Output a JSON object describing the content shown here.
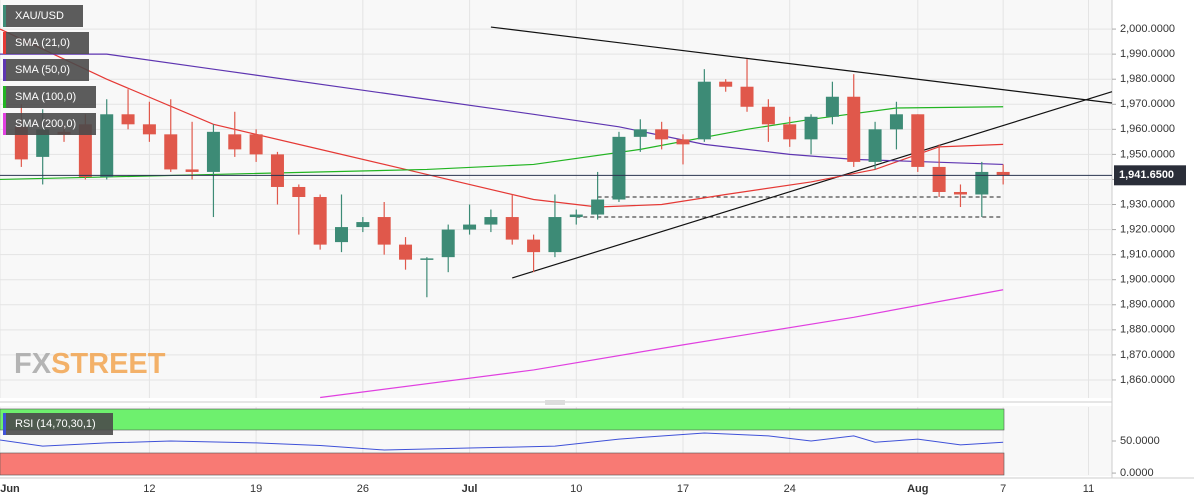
{
  "chart_data": {
    "type": "candlestick",
    "x": [
      1,
      2,
      3,
      4,
      5,
      6,
      7,
      8,
      9,
      10,
      11,
      12,
      13,
      14,
      15,
      16,
      17,
      18,
      19,
      20,
      21,
      22,
      23,
      24,
      25,
      26,
      27,
      28,
      29,
      30,
      31,
      32,
      33,
      34,
      35,
      36,
      37,
      38,
      39,
      40,
      41,
      42,
      43,
      44,
      45,
      46,
      47
    ],
    "candles": {
      "name": "XAU/USD",
      "up_color": "#3d8b76",
      "down_color": "#e0584b",
      "open": [
        1961,
        1949,
        1959,
        1962,
        1941,
        1966,
        1962,
        1958,
        1944,
        1943,
        1958,
        1958,
        1950,
        1937,
        1933,
        1915,
        1921,
        1925,
        1914,
        1908,
        1909,
        1920,
        1922,
        1925,
        1916,
        1911,
        1925,
        1926,
        1932,
        1957,
        1960,
        1956,
        1956,
        1979,
        1977,
        1969,
        1962,
        1956,
        1965,
        1973,
        1947,
        1960,
        1966,
        1945,
        1935,
        1934,
        1943
      ],
      "high": [
        1970,
        1968,
        1962,
        1966,
        1972,
        1976,
        1971,
        1972,
        1963,
        1962,
        1967,
        1960,
        1951,
        1938,
        1934,
        1934,
        1925,
        1931,
        1917,
        1909,
        1922,
        1930,
        1928,
        1934,
        1918,
        1934,
        1928,
        1943,
        1959,
        1964,
        1963,
        1958,
        1984,
        1980,
        1988,
        1972,
        1965,
        1966,
        1979,
        1982,
        1963,
        1971,
        1966,
        1954,
        1938,
        1947,
        1946
      ],
      "low": [
        1945,
        1938,
        1955,
        1940,
        1940,
        1960,
        1955,
        1943,
        1940,
        1925,
        1949,
        1947,
        1930,
        1918,
        1912,
        1911,
        1919,
        1910,
        1904,
        1893,
        1903,
        1918,
        1919,
        1914,
        1903,
        1909,
        1922,
        1924,
        1931,
        1951,
        1952,
        1946,
        1955,
        1975,
        1967,
        1955,
        1953,
        1950,
        1962,
        1945,
        1944,
        1952,
        1943,
        1933,
        1929,
        1925,
        1938
      ],
      "close": [
        1948,
        1960,
        1958,
        1941,
        1966,
        1962,
        1958,
        1944,
        1943,
        1959,
        1952,
        1950,
        1937,
        1933,
        1914,
        1921,
        1923,
        1914,
        1908,
        1908.5,
        1920,
        1922,
        1925,
        1916,
        1911,
        1925,
        1926,
        1932,
        1957,
        1960,
        1956,
        1954,
        1979,
        1977,
        1969,
        1962,
        1956,
        1965,
        1973,
        1947,
        1960,
        1966,
        1945,
        1935,
        1934,
        1943,
        1941.65
      ]
    },
    "series": [
      {
        "name": "SMA (21,0)",
        "color": "#e53935",
        "x": [
          0,
          5,
          10,
          15,
          20,
          25,
          28,
          31,
          34,
          38,
          41,
          44,
          47
        ],
        "values": [
          2000,
          1980,
          1962,
          1952,
          1942,
          1932,
          1929,
          1930,
          1934,
          1939,
          1944,
          1953,
          1954
        ]
      },
      {
        "name": "SMA (50,0)",
        "color": "#5e35b1",
        "x": [
          0,
          5,
          10,
          20,
          25,
          29,
          33,
          37,
          40,
          47
        ],
        "values": [
          1990,
          1990,
          1984,
          1972,
          1966,
          1961,
          1954,
          1950,
          1948,
          1946
        ]
      },
      {
        "name": "SMA (100,0)",
        "color": "#22b422",
        "x": [
          0,
          10,
          20,
          25,
          30,
          35,
          38,
          42,
          47
        ],
        "values": [
          1940,
          1942,
          1944,
          1946,
          1952,
          1960,
          1964,
          1968.5,
          1969
        ]
      },
      {
        "name": "SMA (200,0)",
        "color": "#e040e0",
        "x": [
          15,
          25,
          32,
          40,
          47
        ],
        "values": [
          1853,
          1864,
          1874,
          1885,
          1896
        ]
      }
    ],
    "trendlines": [
      {
        "x": [
          23.0,
          52.1
        ],
        "values": [
          2000.8,
          1970.5
        ]
      },
      {
        "x": [
          24.0,
          52.1
        ],
        "values": [
          1900.7,
          1975
        ]
      }
    ],
    "levels": [
      {
        "x": [
          28,
          47
        ],
        "value": 1933
      },
      {
        "x": [
          27,
          47
        ],
        "value": 1925
      }
    ],
    "current_price": {
      "value": 1941.65,
      "label": "1,941.6500"
    },
    "xlim": [
      0,
      52.1
    ],
    "ylim": [
      1852.8,
      2011.6
    ],
    "yticks": [
      {
        "value": 1860,
        "label": "1,860.0000"
      },
      {
        "value": 1870,
        "label": "1,870.0000"
      },
      {
        "value": 1880,
        "label": "1,880.0000"
      },
      {
        "value": 1890,
        "label": "1,890.0000"
      },
      {
        "value": 1900,
        "label": "1,900.0000"
      },
      {
        "value": 1910,
        "label": "1,910.0000"
      },
      {
        "value": 1920,
        "label": "1,920.0000"
      },
      {
        "value": 1930,
        "label": "1,930.0000"
      },
      {
        "value": 1940,
        "label": "1,940.0000"
      },
      {
        "value": 1950,
        "label": "1,950.0000"
      },
      {
        "value": 1960,
        "label": "1,960.0000"
      },
      {
        "value": 1970,
        "label": "1,970.0000"
      },
      {
        "value": 1980,
        "label": "1,980.0000"
      },
      {
        "value": 1990,
        "label": "1,990.0000"
      },
      {
        "value": 2000,
        "label": "2,000.0000"
      }
    ],
    "xticks": [
      {
        "value": 0,
        "label": "Jun"
      },
      {
        "value": 7,
        "label": "12"
      },
      {
        "value": 12,
        "label": "19"
      },
      {
        "value": 17,
        "label": "26"
      },
      {
        "value": 22,
        "label": "Jul"
      },
      {
        "value": 27,
        "label": "10"
      },
      {
        "value": 32,
        "label": "17"
      },
      {
        "value": 37,
        "label": "24"
      },
      {
        "value": 43,
        "label": "Aug"
      },
      {
        "value": 47,
        "label": "7"
      },
      {
        "value": 51,
        "label": "11"
      }
    ],
    "grid": true,
    "rsi": {
      "name": "RSI (14,70,30,1)",
      "color": "#3f51d8",
      "x": [
        0,
        2,
        5,
        8,
        12,
        15,
        18,
        22,
        26,
        29,
        33,
        36,
        38,
        40,
        41,
        43,
        45,
        47
      ],
      "values": [
        51.5,
        42,
        47,
        50,
        47,
        43,
        36,
        39,
        42,
        53,
        62.5,
        58,
        50,
        58,
        48,
        53,
        44,
        48
      ],
      "ylim": [
        -3,
        103
      ],
      "yticks": [
        {
          "value": 50,
          "label": "50.0000"
        },
        {
          "value": 0,
          "label": "0.0000"
        }
      ]
    },
    "watermark": [
      "FX",
      "STREET"
    ]
  }
}
